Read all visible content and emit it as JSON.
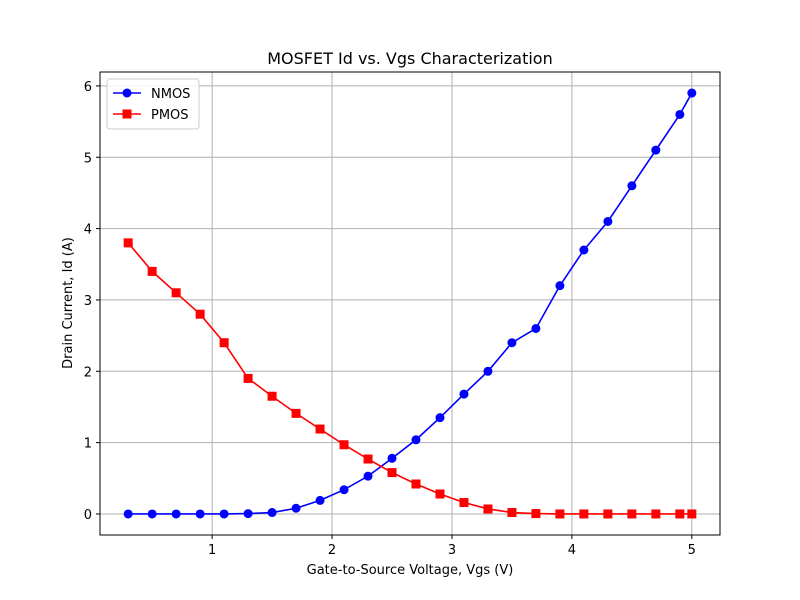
{
  "chart_data": {
    "type": "line",
    "title": "MOSFET Id vs. Vgs Characterization",
    "xlabel": "Gate-to-Source Voltage, Vgs (V)",
    "ylabel": "Drain Current, Id (A)",
    "xlim": [
      0.065,
      5.235
    ],
    "ylim": [
      -0.295,
      6.195
    ],
    "xticks": [
      1,
      2,
      3,
      4,
      5
    ],
    "yticks": [
      0,
      1,
      2,
      3,
      4,
      5,
      6
    ],
    "grid": true,
    "legend_position": "top-left",
    "x": [
      0.3,
      0.5,
      0.7,
      0.9,
      1.1,
      1.3,
      1.5,
      1.7,
      1.9,
      2.1,
      2.3,
      2.5,
      2.7,
      2.9,
      3.1,
      3.3,
      3.5,
      3.7,
      3.9,
      4.1,
      4.3,
      4.5,
      4.7,
      4.9,
      5.0
    ],
    "series": [
      {
        "name": "NMOS",
        "color": "#0000ff",
        "marker": "circle",
        "values": [
          0,
          0,
          0,
          0,
          0,
          0.005,
          0.02,
          0.08,
          0.19,
          0.34,
          0.53,
          0.78,
          1.04,
          1.35,
          1.68,
          2.0,
          2.4,
          2.6,
          3.2,
          3.7,
          4.1,
          4.6,
          5.1,
          5.6,
          5.9
        ]
      },
      {
        "name": "PMOS",
        "color": "#ff0000",
        "marker": "square",
        "values": [
          3.8,
          3.4,
          3.1,
          2.8,
          2.4,
          1.9,
          1.65,
          1.41,
          1.19,
          0.97,
          0.77,
          0.58,
          0.42,
          0.28,
          0.16,
          0.07,
          0.02,
          0.005,
          0,
          0,
          0,
          0,
          0,
          0,
          0
        ]
      }
    ]
  }
}
